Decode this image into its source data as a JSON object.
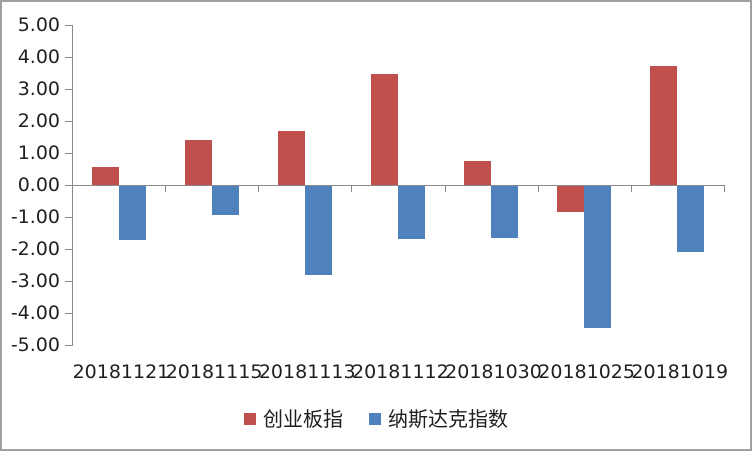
{
  "chart_data": {
    "type": "bar",
    "title": "",
    "xlabel": "",
    "ylabel": "",
    "categories": [
      "20181121",
      "20181115",
      "20181113",
      "20181112",
      "20181030",
      "20181025",
      "20181019"
    ],
    "series": [
      {
        "name": "创业板指",
        "color": "#C0504D",
        "values": [
          0.55,
          1.4,
          1.7,
          3.47,
          0.74,
          -0.81,
          3.72
        ]
      },
      {
        "name": "纳斯达克指数",
        "color": "#4F81BD",
        "values": [
          -1.7,
          -0.9,
          -2.78,
          -1.65,
          -1.63,
          -4.43,
          -2.06
        ]
      }
    ],
    "ylim": [
      -5,
      5
    ],
    "ytick_step": 1,
    "ytick_labels": [
      "5.00",
      "4.00",
      "3.00",
      "2.00",
      "1.00",
      "0.00",
      "-1.00",
      "-2.00",
      "-3.00",
      "-4.00",
      "-5.00"
    ],
    "grid": false,
    "legend_position": "bottom",
    "axis_color": "#898989",
    "text_color": "#1f1f1f",
    "background_color": "#ffffff",
    "frame_border_color": "#a0a0a0"
  }
}
